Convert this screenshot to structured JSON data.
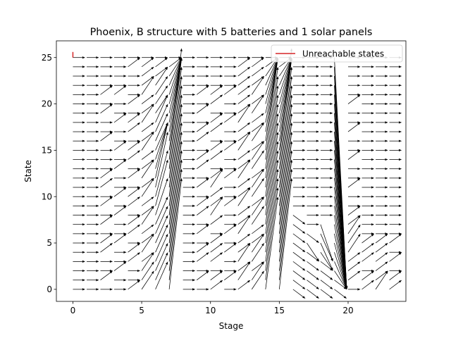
{
  "chart_data": {
    "type": "quiver",
    "title": "Phoenix, B structure with 5 batteries and 1 solar panels",
    "xlabel": "Stage",
    "ylabel": "State",
    "xlim": [
      -1.2,
      24.2
    ],
    "ylim": [
      -1.3,
      26.8
    ],
    "xticks": [
      0,
      5,
      10,
      15,
      20
    ],
    "yticks": [
      0,
      5,
      10,
      15,
      20,
      25
    ],
    "grid": false,
    "legend": {
      "position": "top-right",
      "entries": [
        "Unreachable states"
      ]
    },
    "unreachable_states": {
      "name": "Unreachable states",
      "color": "#d62728",
      "segments": [
        {
          "stage": 0,
          "from_state": 25,
          "to_state": 25.6
        }
      ]
    },
    "arrow_field": {
      "stages": [
        0,
        23
      ],
      "states": [
        0,
        25
      ],
      "dx": 0.9,
      "arrow_color": "#000000",
      "deltas_by_stage": [
        [
          0,
          0,
          0,
          0,
          0,
          0,
          0,
          0,
          0,
          0,
          0,
          0,
          0,
          0,
          0,
          0,
          0,
          0,
          0,
          0,
          0,
          0,
          0,
          0,
          0,
          0
        ],
        [
          0,
          0,
          0,
          0,
          0,
          0,
          0,
          0,
          0,
          0,
          0,
          0,
          0,
          0,
          0,
          0,
          0,
          0,
          0,
          0,
          0,
          0,
          0,
          0,
          0,
          0
        ],
        [
          0,
          1,
          0,
          0,
          1,
          1,
          0,
          1,
          0,
          1,
          0,
          1,
          1,
          0,
          0,
          0,
          1,
          0,
          0,
          1,
          0,
          1,
          0,
          0,
          0,
          0
        ],
        [
          0,
          0,
          1,
          0,
          0,
          1,
          0,
          0,
          1,
          0,
          1,
          0,
          0,
          1,
          0,
          1,
          0,
          0,
          1,
          0,
          0,
          1,
          0,
          0,
          0,
          0
        ],
        [
          1,
          0,
          0,
          1,
          1,
          0,
          1,
          1,
          0,
          1,
          1,
          0,
          1,
          0,
          1,
          1,
          0,
          1,
          1,
          0,
          1,
          0,
          0,
          0,
          1,
          0
        ],
        [
          2,
          2,
          2,
          1,
          2,
          1,
          1,
          2,
          1,
          1,
          2,
          1,
          2,
          1,
          1,
          2,
          1,
          1,
          2,
          1,
          1,
          2,
          1,
          1,
          1,
          0
        ],
        [
          3,
          3,
          3,
          3,
          3,
          3,
          3,
          3,
          4,
          5,
          5,
          6,
          6,
          5,
          4,
          3,
          3,
          3,
          3,
          2,
          2,
          2,
          2,
          1,
          1,
          0
        ],
        [
          12,
          12,
          12,
          12,
          12,
          12,
          12,
          12,
          12,
          12,
          12,
          12,
          12,
          12,
          12,
          10,
          9,
          8,
          7,
          6,
          5,
          4,
          3,
          2,
          1,
          0
        ],
        [
          0,
          0,
          0,
          0,
          0,
          0,
          0,
          0,
          0,
          0,
          0,
          0,
          0,
          0,
          0,
          0,
          0,
          0,
          0,
          0,
          0,
          0,
          0,
          0,
          0,
          0
        ],
        [
          0,
          1,
          0,
          1,
          1,
          0,
          1,
          0,
          1,
          1,
          0,
          1,
          0,
          1,
          1,
          0,
          1,
          1,
          0,
          1,
          0,
          1,
          0,
          0,
          0,
          0
        ],
        [
          1,
          1,
          0,
          1,
          1,
          1,
          0,
          1,
          2,
          1,
          1,
          2,
          1,
          0,
          1,
          1,
          0,
          1,
          1,
          0,
          1,
          1,
          0,
          0,
          0,
          0
        ],
        [
          0,
          1,
          0,
          0,
          1,
          0,
          1,
          0,
          0,
          1,
          0,
          0,
          1,
          0,
          0,
          1,
          0,
          0,
          1,
          0,
          0,
          1,
          0,
          0,
          0,
          0
        ],
        [
          1,
          2,
          1,
          2,
          1,
          1,
          2,
          1,
          1,
          2,
          1,
          1,
          2,
          1,
          1,
          2,
          1,
          1,
          2,
          1,
          1,
          1,
          1,
          1,
          1,
          0
        ],
        [
          2,
          2,
          1,
          2,
          2,
          1,
          1,
          2,
          2,
          1,
          2,
          2,
          1,
          2,
          2,
          1,
          2,
          1,
          1,
          2,
          1,
          2,
          1,
          1,
          1,
          0
        ],
        [
          10,
          10,
          10,
          10,
          10,
          10,
          10,
          10,
          10,
          10,
          10,
          10,
          10,
          10,
          10,
          10,
          9,
          8,
          7,
          6,
          5,
          4,
          3,
          2,
          1,
          0
        ],
        [
          12,
          12,
          12,
          12,
          12,
          12,
          12,
          12,
          12,
          12,
          12,
          12,
          12,
          12,
          12,
          10,
          9,
          8,
          7,
          6,
          5,
          4,
          3,
          2,
          1,
          0
        ],
        [
          -1,
          -1,
          -1,
          -1,
          -1,
          -1,
          -1,
          -1,
          -1,
          0,
          0,
          0,
          0,
          0,
          0,
          0,
          0,
          0,
          0,
          0,
          0,
          0,
          0,
          0,
          0,
          0
        ],
        [
          -1,
          -1,
          -1,
          -1,
          -1,
          -2,
          -1,
          0,
          0,
          0,
          0,
          0,
          0,
          0,
          0,
          0,
          0,
          0,
          0,
          0,
          0,
          0,
          0,
          0,
          0,
          0
        ],
        [
          -1,
          -1,
          -1,
          -1,
          -2,
          -3,
          -3,
          -4,
          0,
          0,
          0,
          0,
          0,
          0,
          0,
          0,
          0,
          0,
          0,
          0,
          0,
          0,
          0,
          0,
          0,
          0
        ],
        [
          -1,
          -1,
          -2,
          -3,
          -4,
          -5,
          -6,
          -7,
          -8,
          -9,
          -10,
          -11,
          -12,
          -13,
          -14,
          -15,
          -16,
          -17,
          -18,
          -19,
          -20,
          -21,
          -22,
          -23,
          -24,
          -25
        ],
        [
          0,
          1,
          1,
          1,
          2,
          2,
          2,
          1,
          1,
          0,
          0,
          1,
          0,
          0,
          1,
          0,
          0,
          1,
          0,
          0,
          1,
          0,
          0,
          0,
          0,
          0
        ],
        [
          1,
          1,
          0,
          1,
          1,
          1,
          0,
          0,
          0,
          0,
          0,
          0,
          0,
          0,
          0,
          0,
          0,
          0,
          0,
          0,
          0,
          0,
          0,
          0,
          0,
          0
        ],
        [
          2,
          1,
          1,
          1,
          1,
          1,
          0,
          0,
          0,
          0,
          0,
          0,
          0,
          0,
          0,
          0,
          0,
          0,
          0,
          0,
          0,
          0,
          0,
          0,
          0,
          0
        ],
        [
          1,
          1,
          0,
          1,
          0,
          1,
          0,
          0,
          0,
          0,
          0,
          0,
          0,
          0,
          0,
          0,
          0,
          0,
          0,
          0,
          0,
          0,
          0,
          0,
          0,
          0
        ]
      ]
    }
  }
}
